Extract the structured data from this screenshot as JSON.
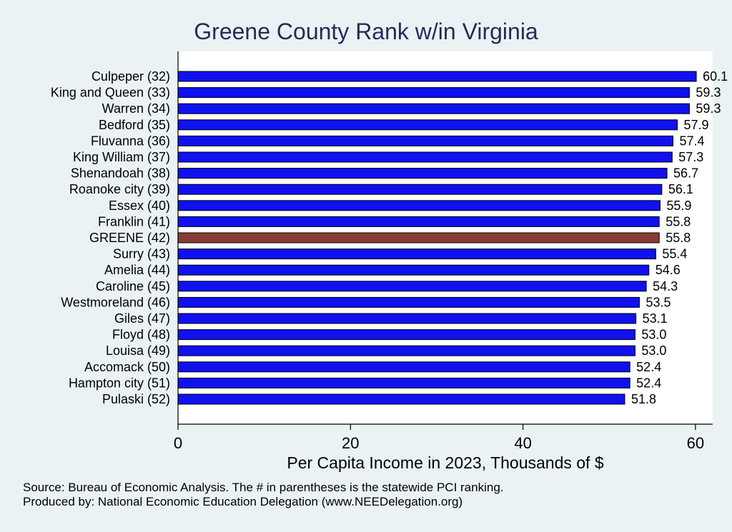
{
  "chart_data": {
    "type": "bar",
    "orientation": "horizontal",
    "title": "Greene County Rank w/in Virginia",
    "xlabel": "Per Capita Income in 2023, Thousands of $",
    "ylabel": "",
    "xlim": [
      0,
      62
    ],
    "xticks": [
      0,
      20,
      40,
      60
    ],
    "grid": false,
    "categories": [
      "Culpeper (32)",
      "King and Queen (33)",
      "Warren (34)",
      "Bedford (35)",
      "Fluvanna (36)",
      "King William (37)",
      "Shenandoah (38)",
      "Roanoke city (39)",
      "Essex (40)",
      "Franklin (41)",
      "GREENE (42)",
      "Surry (43)",
      "Amelia (44)",
      "Caroline (45)",
      "Westmoreland (46)",
      "Giles (47)",
      "Floyd (48)",
      "Louisa (49)",
      "Accomack (50)",
      "Hampton city (51)",
      "Pulaski (52)"
    ],
    "values": [
      60.1,
      59.3,
      59.3,
      57.9,
      57.4,
      57.3,
      56.7,
      56.1,
      55.9,
      55.8,
      55.8,
      55.4,
      54.6,
      54.3,
      53.5,
      53.1,
      53.0,
      53.0,
      52.4,
      52.4,
      51.8
    ],
    "value_labels": [
      "60.1",
      "59.3",
      "59.3",
      "57.9",
      "57.4",
      "57.3",
      "56.7",
      "56.1",
      "55.9",
      "55.8",
      "55.8",
      "55.4",
      "54.6",
      "54.3",
      "53.5",
      "53.1",
      "53.0",
      "53.0",
      "52.4",
      "52.4",
      "51.8"
    ],
    "highlight_index": 10,
    "colors": {
      "bar": "#1010f0",
      "highlight": "#8b3a3a",
      "bar_edge": "#000000"
    }
  },
  "footer": {
    "source": "Source: Bureau of Economic Analysis. The # in parentheses is the statewide PCI ranking.",
    "produced_by": "Produced by: National Economic Education Delegation (www.NEEDelegation.org)"
  }
}
